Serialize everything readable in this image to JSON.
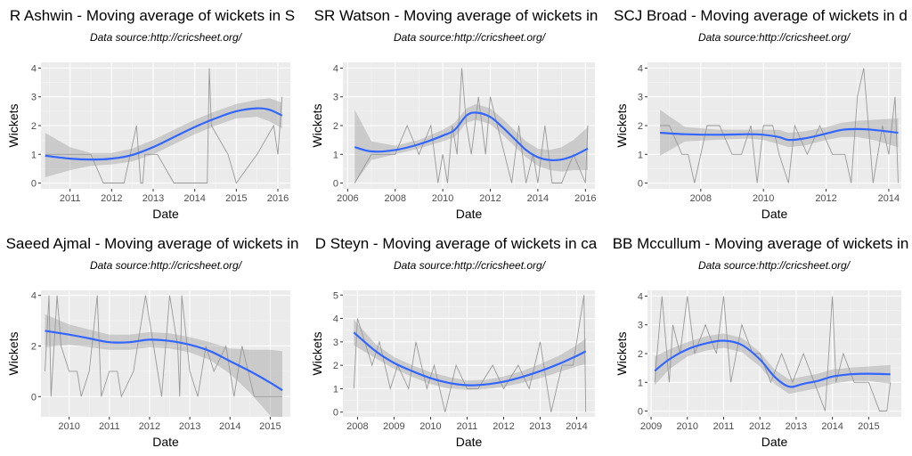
{
  "chart_data": [
    {
      "type": "line",
      "title": "R Ashwin - Moving average of wickets in S",
      "subtitle": "Data source:http://cricsheet.org/",
      "xlabel": "Date",
      "ylabel": "Wickets",
      "xlim": [
        2010.3,
        2016.3
      ],
      "ylim": [
        -0.2,
        4.2
      ],
      "x_ticks": [
        2011,
        2012,
        2013,
        2014,
        2015,
        2016
      ],
      "y_ticks": [
        0,
        1,
        2,
        3,
        4
      ],
      "grid": true,
      "series": [
        {
          "kind": "raw",
          "color": "#999999",
          "x": [
            2010.4,
            2011.0,
            2011.5,
            2011.8,
            2012.0,
            2012.3,
            2012.6,
            2012.7,
            2012.75,
            2012.8,
            2012.9,
            2013.1,
            2013.5,
            2014.0,
            2014.3,
            2014.35,
            2014.4,
            2014.8,
            2015.0,
            2015.5,
            2015.9,
            2016.0,
            2016.1
          ],
          "y": [
            1,
            1,
            1,
            0,
            0,
            0,
            2,
            0,
            0,
            1,
            1,
            1,
            0,
            0,
            0,
            4,
            2,
            1,
            0,
            1,
            2,
            1,
            3
          ]
        },
        {
          "kind": "smooth",
          "color": "#3366FF",
          "x": [
            2010.4,
            2011.0,
            2011.5,
            2012.0,
            2012.5,
            2013.0,
            2013.5,
            2014.0,
            2014.5,
            2015.0,
            2015.5,
            2015.8,
            2016.1
          ],
          "y": [
            0.95,
            0.85,
            0.82,
            0.85,
            0.98,
            1.25,
            1.6,
            1.95,
            2.25,
            2.5,
            2.6,
            2.55,
            2.35
          ],
          "lower": [
            0.2,
            0.45,
            0.6,
            0.65,
            0.75,
            1.0,
            1.35,
            1.7,
            2.0,
            2.25,
            2.3,
            2.15,
            1.9
          ],
          "upper": [
            1.75,
            1.25,
            1.05,
            1.05,
            1.2,
            1.5,
            1.85,
            2.2,
            2.5,
            2.75,
            2.9,
            2.95,
            2.8
          ]
        }
      ]
    },
    {
      "type": "line",
      "title": "SR Watson - Moving average of wickets in",
      "subtitle": "Data source:http://cricsheet.org/",
      "xlabel": "Date",
      "ylabel": "Wickets",
      "xlim": [
        2005.8,
        2016.4
      ],
      "ylim": [
        -0.2,
        4.2
      ],
      "x_ticks": [
        2006,
        2008,
        2010,
        2012,
        2014,
        2016
      ],
      "y_ticks": [
        0,
        1,
        2,
        3,
        4
      ],
      "grid": true,
      "series": [
        {
          "kind": "raw",
          "color": "#999999",
          "x": [
            2006.3,
            2007.0,
            2008.0,
            2008.5,
            2009.0,
            2009.5,
            2009.8,
            2010.0,
            2010.2,
            2010.4,
            2010.6,
            2010.8,
            2011.0,
            2011.2,
            2011.5,
            2011.8,
            2012.0,
            2012.3,
            2012.6,
            2012.9,
            2013.2,
            2013.5,
            2013.8,
            2014.0,
            2014.3,
            2014.6,
            2015.0,
            2015.5,
            2016.0,
            2016.1
          ],
          "y": [
            0,
            1,
            1,
            2,
            1,
            2,
            0,
            1,
            0,
            2,
            1,
            4,
            2,
            1,
            3,
            1,
            3,
            2,
            1,
            0,
            2,
            0,
            1,
            0,
            2,
            0,
            0,
            1,
            0,
            2
          ]
        },
        {
          "kind": "smooth",
          "color": "#3366FF",
          "x": [
            2006.3,
            2007.0,
            2008.0,
            2009.0,
            2010.0,
            2010.5,
            2011.0,
            2011.4,
            2012.0,
            2012.5,
            2013.0,
            2013.5,
            2014.0,
            2014.5,
            2015.0,
            2015.5,
            2016.1
          ],
          "y": [
            1.25,
            1.1,
            1.15,
            1.35,
            1.65,
            1.85,
            2.35,
            2.45,
            2.3,
            1.95,
            1.55,
            1.15,
            0.9,
            0.8,
            0.82,
            0.95,
            1.2
          ],
          "lower": [
            0.0,
            0.8,
            1.0,
            1.2,
            1.45,
            1.6,
            2.1,
            2.2,
            2.05,
            1.7,
            1.3,
            0.9,
            0.6,
            0.45,
            0.4,
            0.45,
            0.45
          ],
          "upper": [
            2.55,
            1.45,
            1.3,
            1.5,
            1.85,
            2.1,
            2.6,
            2.75,
            2.6,
            2.25,
            1.85,
            1.45,
            1.2,
            1.15,
            1.25,
            1.5,
            1.95
          ]
        }
      ]
    },
    {
      "type": "line",
      "title": "SCJ Broad - Moving average of wickets in d",
      "subtitle": "Data source:http://cricsheet.org/",
      "xlabel": "Date",
      "ylabel": "Wickets",
      "xlim": [
        2006.3,
        2014.4
      ],
      "ylim": [
        -0.2,
        4.2
      ],
      "x_ticks": [
        2008,
        2010,
        2012,
        2014
      ],
      "y_ticks": [
        0,
        1,
        2,
        3,
        4
      ],
      "grid": true,
      "series": [
        {
          "kind": "raw",
          "color": "#999999",
          "x": [
            2006.7,
            2007.0,
            2007.4,
            2007.6,
            2007.8,
            2008.2,
            2008.6,
            2009.0,
            2009.3,
            2009.6,
            2009.8,
            2010.0,
            2010.3,
            2010.5,
            2010.8,
            2011.0,
            2011.4,
            2011.8,
            2012.2,
            2012.6,
            2012.8,
            2013.0,
            2013.2,
            2013.5,
            2013.8,
            2014.0,
            2014.2,
            2014.3
          ],
          "y": [
            2,
            2,
            1,
            1,
            0,
            2,
            2,
            1,
            1,
            2,
            0,
            2,
            2,
            1,
            0,
            2,
            1,
            2,
            1,
            1,
            0,
            3,
            4,
            0,
            2,
            1,
            3,
            0
          ]
        },
        {
          "kind": "smooth",
          "color": "#3366FF",
          "x": [
            2006.7,
            2007.5,
            2008.5,
            2009.5,
            2010.0,
            2010.5,
            2010.8,
            2011.3,
            2012.0,
            2012.5,
            2013.0,
            2013.5,
            2014.3
          ],
          "y": [
            1.75,
            1.7,
            1.68,
            1.7,
            1.68,
            1.6,
            1.5,
            1.55,
            1.72,
            1.85,
            1.88,
            1.85,
            1.75
          ],
          "lower": [
            0.95,
            1.45,
            1.5,
            1.55,
            1.5,
            1.35,
            1.25,
            1.3,
            1.5,
            1.6,
            1.6,
            1.5,
            1.25
          ],
          "upper": [
            2.55,
            1.95,
            1.86,
            1.85,
            1.86,
            1.85,
            1.75,
            1.8,
            1.94,
            2.1,
            2.16,
            2.2,
            2.25
          ]
        }
      ]
    },
    {
      "type": "line",
      "title": "Saeed Ajmal - Moving average of wickets in",
      "subtitle": "Data source:http://cricsheet.org/",
      "xlabel": "Date",
      "ylabel": "Wickets",
      "xlim": [
        2009.3,
        2015.5
      ],
      "ylim": [
        -0.8,
        4.2
      ],
      "x_ticks": [
        2010,
        2011,
        2012,
        2013,
        2014,
        2015
      ],
      "y_ticks": [
        0,
        2,
        4
      ],
      "grid": true,
      "series": [
        {
          "kind": "raw",
          "color": "#999999",
          "x": [
            2009.4,
            2009.5,
            2009.55,
            2009.7,
            2009.8,
            2010.0,
            2010.2,
            2010.3,
            2010.5,
            2010.7,
            2010.8,
            2011.0,
            2011.2,
            2011.3,
            2011.6,
            2011.9,
            2012.1,
            2012.3,
            2012.5,
            2012.7,
            2012.75,
            2012.8,
            2013.0,
            2013.2,
            2013.4,
            2013.6,
            2013.9,
            2014.1,
            2014.3,
            2014.6,
            2015.0,
            2015.3
          ],
          "y": [
            1,
            4,
            0,
            4,
            2,
            1,
            1,
            0,
            1,
            4,
            0,
            1,
            1,
            0,
            1,
            4,
            2,
            0,
            4,
            2,
            0,
            4,
            1,
            0,
            2,
            1,
            2,
            0,
            2,
            0,
            0,
            0
          ]
        },
        {
          "kind": "smooth",
          "color": "#3366FF",
          "x": [
            2009.4,
            2010.0,
            2010.5,
            2011.0,
            2011.5,
            2012.0,
            2012.5,
            2013.0,
            2013.5,
            2014.0,
            2014.5,
            2015.0,
            2015.3
          ],
          "y": [
            2.6,
            2.45,
            2.3,
            2.15,
            2.15,
            2.25,
            2.2,
            2.05,
            1.8,
            1.4,
            1.0,
            0.55,
            0.25
          ],
          "lower": [
            1.95,
            2.05,
            1.95,
            1.85,
            1.85,
            1.95,
            1.9,
            1.75,
            1.45,
            0.9,
            0.15,
            -0.75,
            -1.3
          ],
          "upper": [
            3.25,
            2.85,
            2.65,
            2.45,
            2.45,
            2.55,
            2.5,
            2.35,
            2.15,
            1.9,
            1.85,
            1.85,
            1.8
          ]
        }
      ]
    },
    {
      "type": "line",
      "title": "D Steyn - Moving average of wickets in ca",
      "subtitle": "Data source:http://cricsheet.org/",
      "xlabel": "Date",
      "ylabel": "Wickets",
      "xlim": [
        2007.6,
        2014.5
      ],
      "ylim": [
        -0.2,
        5.2
      ],
      "x_ticks": [
        2008,
        2009,
        2010,
        2011,
        2012,
        2013,
        2014
      ],
      "y_ticks": [
        0,
        1,
        2,
        3,
        4,
        5
      ],
      "grid": true,
      "series": [
        {
          "kind": "raw",
          "color": "#999999",
          "x": [
            2007.9,
            2008.0,
            2008.2,
            2008.4,
            2008.6,
            2008.9,
            2009.1,
            2009.4,
            2009.6,
            2009.9,
            2010.1,
            2010.4,
            2010.7,
            2011.0,
            2011.3,
            2011.7,
            2012.0,
            2012.4,
            2012.7,
            2013.0,
            2013.3,
            2013.6,
            2013.9,
            2014.2,
            2014.25
          ],
          "y": [
            1,
            4,
            3,
            2,
            3,
            1,
            2,
            1,
            3,
            1,
            2,
            0,
            2,
            1,
            1,
            2,
            1,
            2,
            1,
            3,
            0,
            2,
            2,
            5,
            0
          ]
        },
        {
          "kind": "smooth",
          "color": "#3366FF",
          "x": [
            2007.9,
            2008.5,
            2009.0,
            2009.5,
            2010.0,
            2010.5,
            2011.0,
            2011.5,
            2012.0,
            2012.5,
            2013.0,
            2013.5,
            2014.0,
            2014.25
          ],
          "y": [
            3.4,
            2.6,
            2.1,
            1.75,
            1.45,
            1.25,
            1.15,
            1.18,
            1.3,
            1.5,
            1.75,
            2.05,
            2.4,
            2.6
          ],
          "lower": [
            2.85,
            2.3,
            1.85,
            1.5,
            1.2,
            1.0,
            0.95,
            0.98,
            1.08,
            1.25,
            1.45,
            1.7,
            1.95,
            2.05
          ],
          "upper": [
            3.95,
            2.9,
            2.35,
            2.0,
            1.7,
            1.5,
            1.35,
            1.38,
            1.52,
            1.75,
            2.05,
            2.4,
            2.85,
            3.15
          ]
        }
      ]
    },
    {
      "type": "line",
      "title": "BB Mccullum - Moving average of wickets in",
      "subtitle": "Data source:http://cricsheet.org/",
      "xlabel": "Date",
      "ylabel": "Wickets",
      "xlim": [
        2008.9,
        2015.9
      ],
      "ylim": [
        -0.2,
        4.2
      ],
      "x_ticks": [
        2009,
        2010,
        2011,
        2012,
        2013,
        2014,
        2015
      ],
      "y_ticks": [
        0,
        1,
        2,
        3,
        4
      ],
      "grid": true,
      "series": [
        {
          "kind": "raw",
          "color": "#999999",
          "x": [
            2009.1,
            2009.3,
            2009.5,
            2009.6,
            2009.8,
            2010.0,
            2010.2,
            2010.5,
            2010.8,
            2011.0,
            2011.2,
            2011.5,
            2011.8,
            2012.0,
            2012.3,
            2012.6,
            2012.9,
            2013.2,
            2013.5,
            2013.8,
            2014.0,
            2014.1,
            2014.3,
            2014.6,
            2015.0,
            2015.3,
            2015.5,
            2015.6
          ],
          "y": [
            1,
            4,
            1,
            3,
            2,
            4,
            2,
            3,
            2,
            4,
            1,
            3,
            2,
            2,
            1,
            2,
            1,
            2,
            1,
            0,
            4,
            1,
            2,
            1,
            1,
            0,
            0,
            1
          ]
        },
        {
          "kind": "smooth",
          "color": "#3366FF",
          "x": [
            2009.1,
            2009.5,
            2010.0,
            2010.5,
            2011.0,
            2011.5,
            2012.0,
            2012.4,
            2012.8,
            2013.2,
            2013.6,
            2014.0,
            2014.5,
            2015.0,
            2015.6
          ],
          "y": [
            1.4,
            1.8,
            2.15,
            2.35,
            2.45,
            2.3,
            1.8,
            1.2,
            0.85,
            0.95,
            1.05,
            1.2,
            1.28,
            1.3,
            1.28
          ],
          "lower": [
            0.9,
            1.45,
            1.9,
            2.1,
            2.2,
            2.05,
            1.55,
            0.95,
            0.6,
            0.7,
            0.8,
            0.95,
            1.05,
            1.05,
            0.95
          ],
          "upper": [
            1.9,
            2.15,
            2.4,
            2.6,
            2.7,
            2.55,
            2.05,
            1.45,
            1.1,
            1.2,
            1.3,
            1.45,
            1.51,
            1.55,
            1.6
          ]
        }
      ]
    }
  ]
}
